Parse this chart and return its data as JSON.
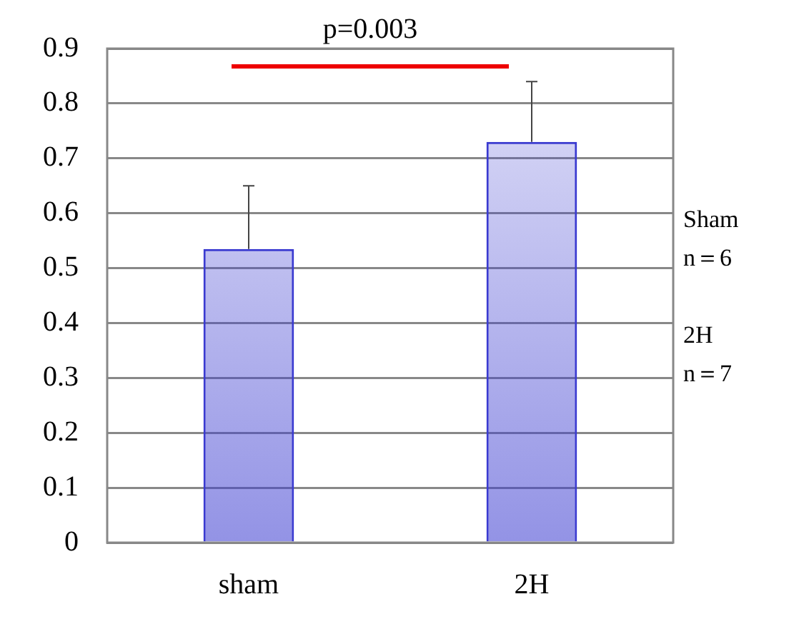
{
  "chart_data": {
    "type": "bar",
    "categories": [
      "sham",
      "2H"
    ],
    "values": [
      0.535,
      0.73
    ],
    "color": "#3a3ad0",
    "errors": [
      [
        0.535,
        0.65
      ],
      [
        0.73,
        0.84
      ]
    ],
    "ylim": [
      0,
      0.9
    ],
    "yticks": [
      0,
      0.1,
      0.2,
      0.3,
      0.4,
      0.5,
      0.6,
      0.7,
      0.8,
      0.9
    ],
    "grid": "y",
    "annotations": [
      "p=0.003",
      "Sham\nn＝6",
      "2H\nn＝7"
    ]
  }
}
